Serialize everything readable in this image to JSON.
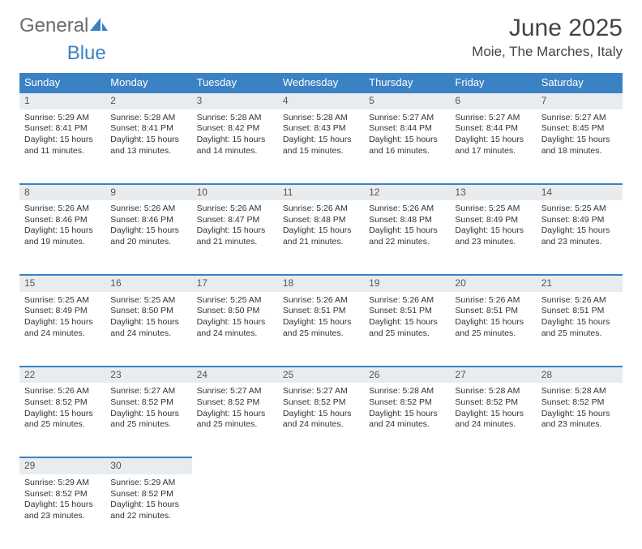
{
  "logo": {
    "part1": "General",
    "part2": "Blue"
  },
  "title": "June 2025",
  "location": "Moie, The Marches, Italy",
  "colors": {
    "header_bg": "#3b82c4",
    "daynum_bg": "#e9ecef",
    "border": "#3b82c4",
    "text": "#333333"
  },
  "weekdays": [
    "Sunday",
    "Monday",
    "Tuesday",
    "Wednesday",
    "Thursday",
    "Friday",
    "Saturday"
  ],
  "weeks": [
    [
      {
        "n": "1",
        "sr": "5:29 AM",
        "ss": "8:41 PM",
        "dl": "15 hours and 11 minutes."
      },
      {
        "n": "2",
        "sr": "5:28 AM",
        "ss": "8:41 PM",
        "dl": "15 hours and 13 minutes."
      },
      {
        "n": "3",
        "sr": "5:28 AM",
        "ss": "8:42 PM",
        "dl": "15 hours and 14 minutes."
      },
      {
        "n": "4",
        "sr": "5:28 AM",
        "ss": "8:43 PM",
        "dl": "15 hours and 15 minutes."
      },
      {
        "n": "5",
        "sr": "5:27 AM",
        "ss": "8:44 PM",
        "dl": "15 hours and 16 minutes."
      },
      {
        "n": "6",
        "sr": "5:27 AM",
        "ss": "8:44 PM",
        "dl": "15 hours and 17 minutes."
      },
      {
        "n": "7",
        "sr": "5:27 AM",
        "ss": "8:45 PM",
        "dl": "15 hours and 18 minutes."
      }
    ],
    [
      {
        "n": "8",
        "sr": "5:26 AM",
        "ss": "8:46 PM",
        "dl": "15 hours and 19 minutes."
      },
      {
        "n": "9",
        "sr": "5:26 AM",
        "ss": "8:46 PM",
        "dl": "15 hours and 20 minutes."
      },
      {
        "n": "10",
        "sr": "5:26 AM",
        "ss": "8:47 PM",
        "dl": "15 hours and 21 minutes."
      },
      {
        "n": "11",
        "sr": "5:26 AM",
        "ss": "8:48 PM",
        "dl": "15 hours and 21 minutes."
      },
      {
        "n": "12",
        "sr": "5:26 AM",
        "ss": "8:48 PM",
        "dl": "15 hours and 22 minutes."
      },
      {
        "n": "13",
        "sr": "5:25 AM",
        "ss": "8:49 PM",
        "dl": "15 hours and 23 minutes."
      },
      {
        "n": "14",
        "sr": "5:25 AM",
        "ss": "8:49 PM",
        "dl": "15 hours and 23 minutes."
      }
    ],
    [
      {
        "n": "15",
        "sr": "5:25 AM",
        "ss": "8:49 PM",
        "dl": "15 hours and 24 minutes."
      },
      {
        "n": "16",
        "sr": "5:25 AM",
        "ss": "8:50 PM",
        "dl": "15 hours and 24 minutes."
      },
      {
        "n": "17",
        "sr": "5:25 AM",
        "ss": "8:50 PM",
        "dl": "15 hours and 24 minutes."
      },
      {
        "n": "18",
        "sr": "5:26 AM",
        "ss": "8:51 PM",
        "dl": "15 hours and 25 minutes."
      },
      {
        "n": "19",
        "sr": "5:26 AM",
        "ss": "8:51 PM",
        "dl": "15 hours and 25 minutes."
      },
      {
        "n": "20",
        "sr": "5:26 AM",
        "ss": "8:51 PM",
        "dl": "15 hours and 25 minutes."
      },
      {
        "n": "21",
        "sr": "5:26 AM",
        "ss": "8:51 PM",
        "dl": "15 hours and 25 minutes."
      }
    ],
    [
      {
        "n": "22",
        "sr": "5:26 AM",
        "ss": "8:52 PM",
        "dl": "15 hours and 25 minutes."
      },
      {
        "n": "23",
        "sr": "5:27 AM",
        "ss": "8:52 PM",
        "dl": "15 hours and 25 minutes."
      },
      {
        "n": "24",
        "sr": "5:27 AM",
        "ss": "8:52 PM",
        "dl": "15 hours and 25 minutes."
      },
      {
        "n": "25",
        "sr": "5:27 AM",
        "ss": "8:52 PM",
        "dl": "15 hours and 24 minutes."
      },
      {
        "n": "26",
        "sr": "5:28 AM",
        "ss": "8:52 PM",
        "dl": "15 hours and 24 minutes."
      },
      {
        "n": "27",
        "sr": "5:28 AM",
        "ss": "8:52 PM",
        "dl": "15 hours and 24 minutes."
      },
      {
        "n": "28",
        "sr": "5:28 AM",
        "ss": "8:52 PM",
        "dl": "15 hours and 23 minutes."
      }
    ],
    [
      {
        "n": "29",
        "sr": "5:29 AM",
        "ss": "8:52 PM",
        "dl": "15 hours and 23 minutes."
      },
      {
        "n": "30",
        "sr": "5:29 AM",
        "ss": "8:52 PM",
        "dl": "15 hours and 22 minutes."
      },
      null,
      null,
      null,
      null,
      null
    ]
  ],
  "labels": {
    "sunrise": "Sunrise: ",
    "sunset": "Sunset: ",
    "daylight": "Daylight: "
  }
}
